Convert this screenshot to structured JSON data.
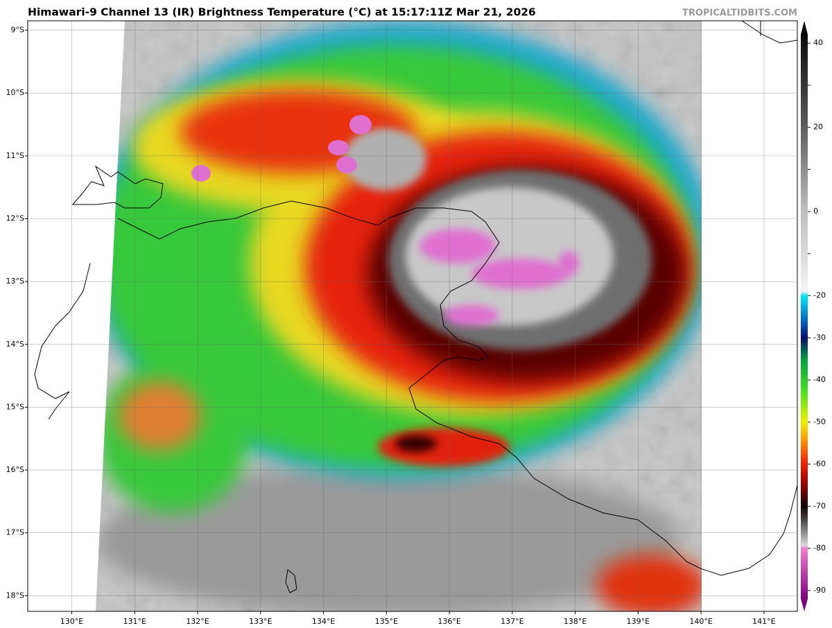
{
  "header": {
    "title": "Himawari-9 Channel 13 (IR) Brightness Temperature (°C) at 15:17:11Z Mar 21, 2026",
    "watermark": "TROPICALTIDBITS.COM"
  },
  "map": {
    "lat_ticks": [
      {
        "value": -9,
        "label": "9°S"
      },
      {
        "value": -10,
        "label": "10°S"
      },
      {
        "value": -11,
        "label": "11°S"
      },
      {
        "value": -12,
        "label": "12°S"
      },
      {
        "value": -13,
        "label": "13°S"
      },
      {
        "value": -14,
        "label": "14°S"
      },
      {
        "value": -15,
        "label": "15°S"
      },
      {
        "value": -16,
        "label": "16°S"
      },
      {
        "value": -17,
        "label": "17°S"
      },
      {
        "value": -18,
        "label": "18°S"
      }
    ],
    "lon_ticks": [
      {
        "value": 130,
        "label": "130°E"
      },
      {
        "value": 131,
        "label": "131°E"
      },
      {
        "value": 132,
        "label": "132°E"
      },
      {
        "value": 133,
        "label": "133°E"
      },
      {
        "value": 134,
        "label": "134°E"
      },
      {
        "value": 135,
        "label": "135°E"
      },
      {
        "value": 136,
        "label": "136°E"
      },
      {
        "value": 137,
        "label": "137°E"
      },
      {
        "value": 138,
        "label": "138°E"
      },
      {
        "value": 139,
        "label": "139°E"
      },
      {
        "value": 140,
        "label": "140°E"
      },
      {
        "value": 141,
        "label": "141°E"
      }
    ],
    "latlim": [
      -18.25,
      -8.85
    ],
    "lonlim": [
      129.3,
      141.53
    ],
    "colorbar": {
      "lim": [
        -92,
        42
      ],
      "ticks": [
        40,
        30,
        20,
        10,
        0,
        -10,
        -20,
        -30,
        -40,
        -50,
        -60,
        -70,
        -80,
        -90
      ],
      "labeled_ticks": [
        40,
        20,
        0,
        -20,
        -30,
        -40,
        -50,
        -60,
        -70,
        -80,
        -90
      ]
    }
  }
}
